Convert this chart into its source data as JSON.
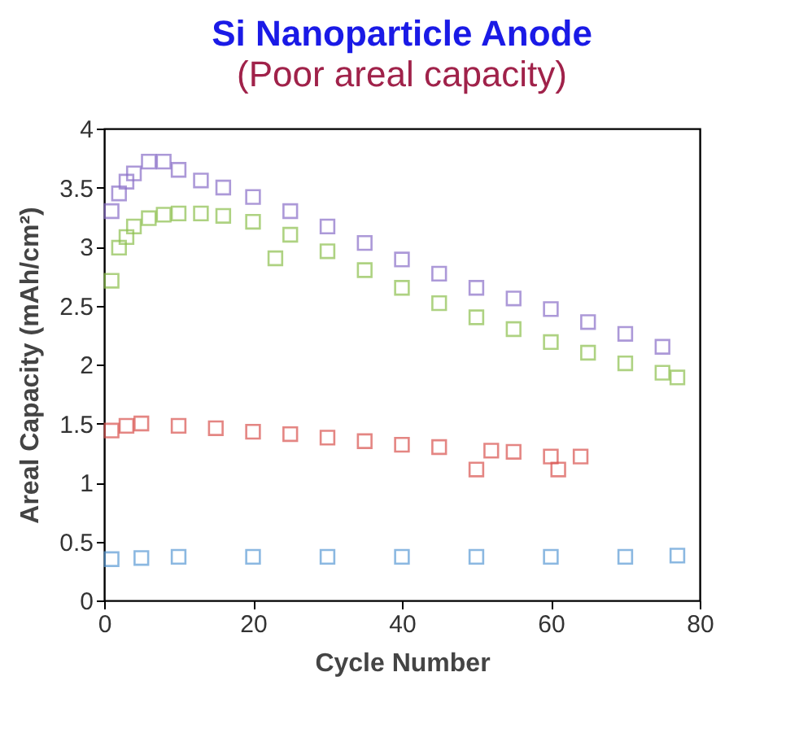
{
  "chart_data": {
    "type": "scatter",
    "title": "Si Nanoparticle Anode",
    "subtitle": "(Poor areal capacity)",
    "xlabel": "Cycle Number",
    "ylabel": "Areal Capacity (mAh/cm²)",
    "xlim": [
      0,
      80
    ],
    "xticks": [
      0,
      20,
      40,
      60,
      80
    ],
    "ylim": [
      0,
      4
    ],
    "yticks": [
      0,
      0.5,
      1,
      1.5,
      2,
      2.5,
      3,
      3.5,
      4
    ],
    "marker": "square",
    "series": [
      {
        "color": "#8a6fc8",
        "x": [
          1,
          2,
          3,
          4,
          6,
          8,
          10,
          13,
          16,
          20,
          25,
          30,
          35,
          40,
          45,
          50,
          55,
          60,
          65,
          70,
          75
        ],
        "values": [
          3.3,
          3.45,
          3.55,
          3.62,
          3.72,
          3.72,
          3.65,
          3.56,
          3.5,
          3.42,
          3.3,
          3.17,
          3.03,
          2.89,
          2.77,
          2.65,
          2.56,
          2.47,
          2.36,
          2.26,
          2.15
        ]
      },
      {
        "color": "#8dc04e",
        "x": [
          1,
          2,
          3,
          4,
          6,
          8,
          10,
          13,
          16,
          20,
          23,
          25,
          30,
          35,
          40,
          45,
          50,
          55,
          60,
          65,
          70,
          75,
          77
        ],
        "values": [
          2.71,
          2.99,
          3.08,
          3.17,
          3.24,
          3.27,
          3.28,
          3.28,
          3.26,
          3.21,
          2.9,
          3.1,
          2.96,
          2.8,
          2.65,
          2.52,
          2.4,
          2.3,
          2.19,
          2.1,
          2.01,
          1.93,
          1.89
        ]
      },
      {
        "color": "#d9534f",
        "x": [
          1,
          3,
          5,
          10,
          15,
          20,
          25,
          30,
          35,
          40,
          45,
          50,
          52,
          55,
          60,
          61,
          64
        ],
        "values": [
          1.44,
          1.48,
          1.5,
          1.48,
          1.46,
          1.43,
          1.41,
          1.38,
          1.35,
          1.32,
          1.3,
          1.11,
          1.27,
          1.26,
          1.22,
          1.11,
          1.22
        ]
      },
      {
        "color": "#5b9bd5",
        "x": [
          1,
          5,
          10,
          20,
          30,
          40,
          50,
          60,
          70,
          77
        ],
        "values": [
          0.35,
          0.36,
          0.37,
          0.37,
          0.37,
          0.37,
          0.37,
          0.37,
          0.37,
          0.38
        ]
      }
    ]
  }
}
